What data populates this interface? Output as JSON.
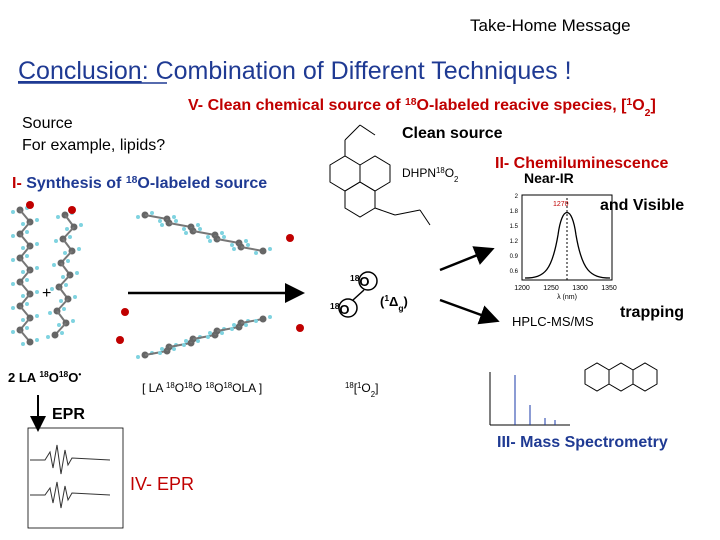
{
  "header": "Take-Home Message",
  "title": {
    "underlined": "Conclusion",
    "rest": ": Combination of Different Techniques !"
  },
  "source": {
    "line1": "Source",
    "line2": "For example, lipids?"
  },
  "section_v": [
    "V- Clean chemical source of ",
    "18",
    "O-labeled reacive species, [",
    "1",
    "O",
    "2",
    "]"
  ],
  "clean_source": "Clean source",
  "section_i": [
    "I-",
    " Synthesis of ",
    "18",
    "O-labeled source"
  ],
  "dhpn": [
    "DHPN",
    "18",
    "O",
    "2"
  ],
  "section_ii": [
    "II-",
    " Chemiluminescence"
  ],
  "near_ir": "Near-IR",
  "visible": "and Visible",
  "spectrum": {
    "peak": "1270",
    "xticks": [
      "1200",
      "1250",
      "1300",
      "1350"
    ],
    "xlabel": "λ (nm)",
    "yticks": [
      "2",
      "1.8",
      "1.5",
      "1.2",
      "0.9",
      "0.6"
    ]
  },
  "hplc": "HPLC-MS/MS",
  "trapping": "trapping",
  "section_iii": [
    "III-",
    " Mass Spectrometry"
  ],
  "epr_arrow": "EPR",
  "section_iv": [
    "IV-",
    " EPR"
  ],
  "lipid_radical": [
    "2 LA ",
    "18",
    "O",
    "18",
    "O",
    "•"
  ],
  "tetroxide": [
    "[ LA ",
    "18",
    "O",
    "18",
    "O  ",
    "18",
    "O",
    "18",
    "OLA ]"
  ],
  "singlet": [
    "18",
    "[",
    "1",
    "O",
    "2",
    "]"
  ],
  "o_upper": [
    "18",
    "O"
  ],
  "o_lower": [
    "18",
    "O"
  ],
  "delta": [
    "(",
    "1",
    "Δ",
    "g",
    ")"
  ],
  "plus": "+"
}
